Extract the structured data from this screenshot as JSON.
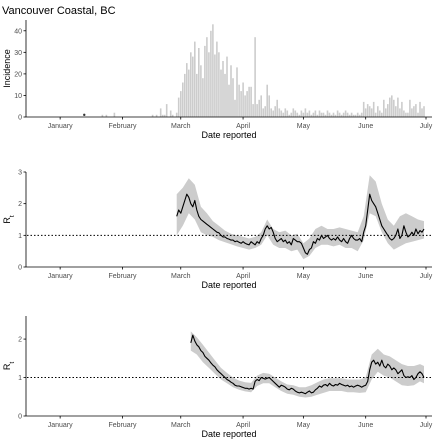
{
  "title": "Vancouver Coastal, BC",
  "x_tick_labels": [
    "January",
    "February",
    "March",
    "April",
    "May",
    "June",
    "July"
  ],
  "colors": {
    "bar": "#cccccc",
    "ribbon": "#cccccc",
    "line": "#000000",
    "axis": "#000000",
    "ref_line": "#000000",
    "highlight_point": "#333333"
  },
  "chart_data": [
    {
      "type": "bar",
      "xlabel": "Date reported",
      "ylabel": "Incidence",
      "x_start_date": "2020-01-01",
      "xlim": [
        "2020-01-01",
        "2020-07-15"
      ],
      "ylim": [
        0,
        45
      ],
      "y_ticks": [
        0,
        10,
        20,
        30,
        40
      ],
      "x_tick_dates": [
        "2020-01-15",
        "2020-02-15",
        "2020-03-15",
        "2020-04-15",
        "2020-05-15",
        "2020-06-15",
        "2020-07-15"
      ],
      "highlight_point": {
        "date": "2020-01-27",
        "value": 1
      },
      "series": [
        {
          "name": "Incidence",
          "day_offsets": [
            35,
            37,
            41,
            60,
            62,
            64,
            65,
            66,
            67,
            69,
            70,
            72,
            73,
            74,
            75,
            76,
            77,
            78,
            79,
            80,
            81,
            82,
            83,
            84,
            85,
            86,
            87,
            88,
            89,
            90,
            91,
            92,
            93,
            94,
            95,
            96,
            97,
            98,
            99,
            100,
            101,
            102,
            103,
            104,
            105,
            106,
            107,
            108,
            109,
            110,
            111,
            112,
            113,
            114,
            115,
            116,
            117,
            118,
            119,
            120,
            121,
            122,
            123,
            124,
            125,
            126,
            127,
            128,
            129,
            130,
            131,
            132,
            133,
            134,
            135,
            136,
            137,
            138,
            139,
            140,
            141,
            142,
            143,
            144,
            145,
            146,
            147,
            148,
            149,
            150,
            151,
            152,
            153,
            154,
            155,
            156,
            157,
            158,
            159,
            160,
            161,
            162,
            163,
            164,
            165,
            166,
            167,
            168,
            169,
            170,
            171,
            172,
            173,
            174,
            175,
            176,
            177,
            178,
            179,
            180,
            181,
            182,
            183,
            184,
            185,
            186,
            187,
            188,
            189,
            190,
            191,
            192,
            193,
            194,
            195
          ],
          "values": [
            1,
            1,
            2,
            1,
            1,
            4,
            1,
            1,
            6,
            3,
            1,
            2,
            9,
            12,
            16,
            20,
            25,
            22,
            30,
            28,
            35,
            20,
            32,
            24,
            18,
            33,
            37,
            30,
            40,
            43,
            29,
            35,
            30,
            22,
            26,
            20,
            28,
            15,
            24,
            18,
            8,
            23,
            15,
            12,
            16,
            10,
            12,
            14,
            14,
            6,
            37,
            6,
            8,
            10,
            4,
            5,
            15,
            10,
            4,
            3,
            5,
            8,
            4,
            3,
            2,
            4,
            3,
            1,
            2,
            4,
            3,
            2,
            1,
            3,
            2,
            4,
            2,
            3,
            1,
            2,
            3,
            1,
            3,
            2,
            2,
            1,
            3,
            2,
            1,
            2,
            1,
            3,
            2,
            1,
            2,
            3,
            2,
            1,
            2,
            1,
            1,
            2,
            1,
            2,
            7,
            4,
            6,
            5,
            4,
            7,
            2,
            5,
            3,
            2,
            8,
            4,
            6,
            9,
            10,
            8,
            5,
            9,
            4,
            7,
            3,
            2,
            2,
            8,
            4,
            5,
            6,
            2,
            7,
            4,
            5
          ]
        }
      ]
    },
    {
      "type": "line",
      "xlabel": "Date reported",
      "ylabel": "R",
      "ylabel_subscript": "t",
      "x_start_date": "2020-01-01",
      "xlim": [
        "2020-01-01",
        "2020-07-15"
      ],
      "ylim": [
        0,
        3
      ],
      "y_ticks": [
        0,
        1,
        2,
        3
      ],
      "x_tick_dates": [
        "2020-01-15",
        "2020-02-15",
        "2020-03-15",
        "2020-04-15",
        "2020-05-15",
        "2020-06-15",
        "2020-07-15"
      ],
      "reference_line": 1,
      "series": [
        {
          "name": "Rt",
          "day_offsets": [
            72,
            73,
            74,
            75,
            76,
            77,
            78,
            79,
            80,
            81,
            82,
            83,
            84,
            85,
            86,
            87,
            88,
            89,
            90,
            91,
            92,
            93,
            94,
            95,
            96,
            97,
            98,
            99,
            100,
            101,
            102,
            103,
            104,
            105,
            106,
            107,
            108,
            109,
            110,
            111,
            112,
            113,
            114,
            115,
            116,
            117,
            118,
            119,
            120,
            121,
            122,
            123,
            124,
            125,
            126,
            127,
            128,
            129,
            130,
            131,
            132,
            133,
            134,
            135,
            136,
            137,
            138,
            139,
            140,
            141,
            142,
            143,
            144,
            145,
            146,
            147,
            148,
            149,
            150,
            151,
            152,
            153,
            154,
            155,
            156,
            157,
            158,
            159,
            160,
            161,
            162,
            163,
            164,
            165,
            166,
            167,
            168,
            169,
            170,
            171,
            172,
            173,
            174,
            175,
            176,
            177,
            178,
            179,
            180,
            181,
            182,
            183,
            184,
            185,
            186,
            187,
            188,
            189,
            190,
            191,
            192,
            193,
            194,
            195
          ],
          "values": [
            1.6,
            1.8,
            1.7,
            1.9,
            2.1,
            2.3,
            2.2,
            2.0,
            1.9,
            2.1,
            1.8,
            1.6,
            1.5,
            1.45,
            1.4,
            1.35,
            1.3,
            1.25,
            1.2,
            1.15,
            1.1,
            1.08,
            1.0,
            0.95,
            0.95,
            0.9,
            0.88,
            0.85,
            0.85,
            0.8,
            0.82,
            0.78,
            0.75,
            0.8,
            0.75,
            0.72,
            0.7,
            0.8,
            0.75,
            0.7,
            0.8,
            0.75,
            0.9,
            1.0,
            1.2,
            1.3,
            1.2,
            1.25,
            1.1,
            0.9,
            0.8,
            0.85,
            0.9,
            0.8,
            0.85,
            0.75,
            0.8,
            0.7,
            0.9,
            0.85,
            0.8,
            0.8,
            0.75,
            0.6,
            0.45,
            0.4,
            0.55,
            0.6,
            0.8,
            0.75,
            0.9,
            0.85,
            1.0,
            0.9,
            0.95,
            1.0,
            0.9,
            0.85,
            0.9,
            0.85,
            0.95,
            0.85,
            0.8,
            0.9,
            0.8,
            0.75,
            0.9,
            1.0,
            0.9,
            0.85,
            0.85,
            0.9,
            0.8,
            1.1,
            1.3,
            1.8,
            2.3,
            2.1,
            2.0,
            1.9,
            1.7,
            1.5,
            1.3,
            1.2,
            1.1,
            1.0,
            0.9,
            0.85,
            0.9,
            1.0,
            1.2,
            0.9,
            1.0,
            1.3,
            1.1,
            0.95,
            1.0,
            1.1,
            1.0,
            1.2,
            1.05,
            1.15,
            1.1,
            1.2
          ]
        }
      ],
      "ribbon": {
        "day_offsets": [
          72,
          75,
          78,
          81,
          84,
          87,
          90,
          93,
          96,
          99,
          102,
          105,
          108,
          111,
          114,
          117,
          120,
          123,
          126,
          129,
          132,
          135,
          138,
          141,
          144,
          147,
          150,
          153,
          156,
          159,
          162,
          165,
          168,
          171,
          174,
          177,
          180,
          183,
          186,
          189,
          192,
          195
        ],
        "lower": [
          1.0,
          1.3,
          1.7,
          1.5,
          1.1,
          1.0,
          0.95,
          0.85,
          0.78,
          0.72,
          0.65,
          0.6,
          0.55,
          0.6,
          0.7,
          1.0,
          0.7,
          0.6,
          0.6,
          0.5,
          0.55,
          0.25,
          0.35,
          0.6,
          0.7,
          0.7,
          0.65,
          0.7,
          0.6,
          0.6,
          0.5,
          0.85,
          1.7,
          1.6,
          1.1,
          0.75,
          0.55,
          0.65,
          0.75,
          0.8,
          0.85,
          0.9
        ],
        "upper": [
          2.3,
          2.5,
          2.8,
          2.6,
          1.9,
          1.7,
          1.45,
          1.3,
          1.15,
          1.05,
          1.0,
          0.95,
          0.9,
          0.95,
          1.1,
          1.5,
          1.2,
          1.1,
          1.15,
          1.0,
          1.05,
          0.75,
          0.9,
          1.2,
          1.3,
          1.2,
          1.2,
          1.25,
          1.2,
          1.15,
          1.1,
          1.6,
          2.9,
          2.7,
          2.0,
          1.5,
          1.3,
          1.6,
          1.7,
          1.6,
          1.5,
          1.45
        ]
      }
    },
    {
      "type": "line",
      "xlabel": "Date reported",
      "ylabel": "R",
      "ylabel_subscript": "t",
      "x_start_date": "2020-01-01",
      "xlim": [
        "2020-01-01",
        "2020-07-15"
      ],
      "ylim": [
        0,
        2.6
      ],
      "y_ticks": [
        0,
        1,
        2
      ],
      "x_tick_dates": [
        "2020-01-15",
        "2020-02-15",
        "2020-03-15",
        "2020-04-15",
        "2020-05-15",
        "2020-06-15",
        "2020-07-15"
      ],
      "reference_line": 1,
      "series": [
        {
          "name": "Rt",
          "day_offsets": [
            79,
            80,
            81,
            82,
            83,
            84,
            85,
            86,
            87,
            88,
            89,
            90,
            91,
            92,
            93,
            94,
            95,
            96,
            97,
            98,
            99,
            100,
            101,
            102,
            103,
            104,
            105,
            106,
            107,
            108,
            109,
            110,
            111,
            112,
            113,
            114,
            115,
            116,
            117,
            118,
            119,
            120,
            121,
            122,
            123,
            124,
            125,
            126,
            127,
            128,
            129,
            130,
            131,
            132,
            133,
            134,
            135,
            136,
            137,
            138,
            139,
            140,
            141,
            142,
            143,
            144,
            145,
            146,
            147,
            148,
            149,
            150,
            151,
            152,
            153,
            154,
            155,
            156,
            157,
            158,
            159,
            160,
            161,
            162,
            163,
            164,
            165,
            166,
            167,
            168,
            169,
            170,
            171,
            172,
            173,
            174,
            175,
            176,
            177,
            178,
            179,
            180,
            181,
            182,
            183,
            184,
            185,
            186,
            187,
            188,
            189,
            190,
            191,
            192,
            193,
            194,
            195
          ],
          "values": [
            1.9,
            2.1,
            1.95,
            1.85,
            1.8,
            1.7,
            1.65,
            1.55,
            1.5,
            1.45,
            1.38,
            1.32,
            1.28,
            1.2,
            1.15,
            1.1,
            1.05,
            1.0,
            0.95,
            0.92,
            0.88,
            0.85,
            0.8,
            0.78,
            0.78,
            0.76,
            0.74,
            0.72,
            0.72,
            0.7,
            0.72,
            0.7,
            0.9,
            0.95,
            0.92,
            1.0,
            0.98,
            0.96,
            0.98,
            1.0,
            0.95,
            0.9,
            0.85,
            0.8,
            0.75,
            0.8,
            0.78,
            0.75,
            0.7,
            0.68,
            0.72,
            0.7,
            0.65,
            0.62,
            0.6,
            0.62,
            0.6,
            0.58,
            0.62,
            0.65,
            0.6,
            0.62,
            0.68,
            0.72,
            0.78,
            0.75,
            0.8,
            0.82,
            0.78,
            0.85,
            0.8,
            0.78,
            0.82,
            0.8,
            0.85,
            0.82,
            0.8,
            0.78,
            0.8,
            0.76,
            0.78,
            0.75,
            0.78,
            0.8,
            0.78,
            0.75,
            0.78,
            0.8,
            0.9,
            1.2,
            1.4,
            1.45,
            1.35,
            1.4,
            1.3,
            1.45,
            1.3,
            1.25,
            1.35,
            1.3,
            1.2,
            1.25,
            1.2,
            1.1,
            1.15,
            1.2,
            1.05,
            1.0,
            1.02,
            1.0,
            1.05,
            0.95,
            1.0,
            1.1,
            1.15,
            1.1,
            1.0
          ]
        }
      ],
      "ribbon": {
        "day_offsets": [
          79,
          82,
          85,
          88,
          91,
          94,
          97,
          100,
          103,
          106,
          109,
          112,
          115,
          118,
          121,
          124,
          127,
          130,
          133,
          136,
          139,
          142,
          145,
          148,
          151,
          154,
          157,
          160,
          163,
          166,
          169,
          172,
          175,
          178,
          181,
          184,
          187,
          190,
          193,
          195
        ],
        "lower": [
          1.7,
          1.6,
          1.4,
          1.25,
          1.1,
          0.95,
          0.85,
          0.75,
          0.68,
          0.64,
          0.62,
          0.78,
          0.85,
          0.85,
          0.75,
          0.65,
          0.58,
          0.55,
          0.5,
          0.48,
          0.5,
          0.55,
          0.6,
          0.65,
          0.65,
          0.65,
          0.62,
          0.62,
          0.6,
          0.62,
          0.95,
          1.15,
          1.05,
          1.0,
          0.9,
          0.8,
          0.78,
          0.8,
          0.9,
          0.85
        ],
        "upper": [
          2.2,
          2.05,
          1.85,
          1.65,
          1.45,
          1.25,
          1.12,
          1.0,
          0.92,
          0.88,
          0.86,
          1.05,
          1.12,
          1.1,
          1.0,
          0.9,
          0.82,
          0.8,
          0.75,
          0.75,
          0.8,
          0.88,
          0.95,
          0.98,
          0.98,
          0.98,
          0.95,
          0.95,
          0.95,
          1.0,
          1.6,
          1.75,
          1.6,
          1.55,
          1.45,
          1.35,
          1.3,
          1.3,
          1.35,
          1.3
        ]
      }
    }
  ]
}
